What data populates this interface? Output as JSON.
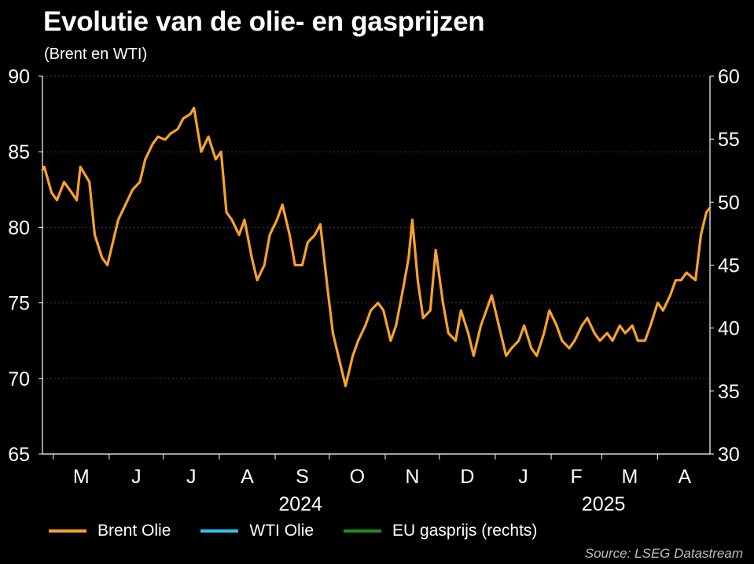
{
  "chart_data": {
    "type": "line",
    "title": "Evolutie van de olie- en gasprijzen",
    "subtitle": "(Brent en WTI)",
    "source": "Source: LSEG Datastream",
    "x_month_labels": [
      "M",
      "J",
      "J",
      "A",
      "S",
      "O",
      "N",
      "D",
      "J",
      "F",
      "M",
      "A"
    ],
    "x_year_labels": [
      "2024",
      "2025"
    ],
    "xlim": [
      "2024-04-25",
      "2025-04-30"
    ],
    "y_left": {
      "ylim": [
        65,
        90
      ],
      "ticks": [
        65,
        70,
        75,
        80,
        85,
        90
      ]
    },
    "y_right": {
      "ylim": [
        30,
        60
      ],
      "ticks": [
        30,
        35,
        40,
        45,
        50,
        55,
        60
      ]
    },
    "grid": "horizontal",
    "legend_position": "bottom",
    "series": [
      {
        "name": "Brent Olie",
        "axis": "left",
        "color": "#f7a22b",
        "points": [
          [
            "2024-04-25",
            83.8
          ],
          [
            "2024-04-26",
            84.0
          ],
          [
            "2024-04-30",
            82.3
          ],
          [
            "2024-05-03",
            81.8
          ],
          [
            "2024-05-07",
            83.0
          ],
          [
            "2024-05-10",
            82.5
          ],
          [
            "2024-05-14",
            81.8
          ],
          [
            "2024-05-16",
            84.0
          ],
          [
            "2024-05-21",
            83.0
          ],
          [
            "2024-05-24",
            79.5
          ],
          [
            "2024-05-28",
            78.0
          ],
          [
            "2024-05-31",
            77.5
          ],
          [
            "2024-06-03",
            79.0
          ],
          [
            "2024-06-06",
            80.5
          ],
          [
            "2024-06-10",
            81.5
          ],
          [
            "2024-06-14",
            82.5
          ],
          [
            "2024-06-18",
            83.0
          ],
          [
            "2024-06-21",
            84.5
          ],
          [
            "2024-06-25",
            85.5
          ],
          [
            "2024-06-28",
            86.0
          ],
          [
            "2024-07-02",
            85.8
          ],
          [
            "2024-07-05",
            86.2
          ],
          [
            "2024-07-09",
            86.5
          ],
          [
            "2024-07-12",
            87.2
          ],
          [
            "2024-07-16",
            87.5
          ],
          [
            "2024-07-18",
            87.9
          ],
          [
            "2024-07-22",
            85.0
          ],
          [
            "2024-07-26",
            86.0
          ],
          [
            "2024-07-30",
            84.5
          ],
          [
            "2024-08-02",
            85.0
          ],
          [
            "2024-08-05",
            81.0
          ],
          [
            "2024-08-08",
            80.5
          ],
          [
            "2024-08-12",
            79.5
          ],
          [
            "2024-08-15",
            80.5
          ],
          [
            "2024-08-19",
            78.0
          ],
          [
            "2024-08-22",
            76.5
          ],
          [
            "2024-08-26",
            77.5
          ],
          [
            "2024-08-29",
            79.5
          ],
          [
            "2024-09-02",
            80.5
          ],
          [
            "2024-09-05",
            81.5
          ],
          [
            "2024-09-09",
            79.5
          ],
          [
            "2024-09-12",
            77.5
          ],
          [
            "2024-09-16",
            77.5
          ],
          [
            "2024-09-19",
            79.0
          ],
          [
            "2024-09-23",
            79.5
          ],
          [
            "2024-09-26",
            80.2
          ],
          [
            "2024-09-30",
            76.0
          ],
          [
            "2024-10-03",
            73.0
          ],
          [
            "2024-10-07",
            71.0
          ],
          [
            "2024-10-10",
            69.5
          ],
          [
            "2024-10-14",
            71.5
          ],
          [
            "2024-10-17",
            72.5
          ],
          [
            "2024-10-21",
            73.5
          ],
          [
            "2024-10-24",
            74.5
          ],
          [
            "2024-10-28",
            75.0
          ],
          [
            "2024-10-31",
            74.5
          ],
          [
            "2024-11-04",
            72.5
          ],
          [
            "2024-11-07",
            73.5
          ],
          [
            "2024-11-11",
            76.0
          ],
          [
            "2024-11-14",
            78.0
          ],
          [
            "2024-11-16",
            80.5
          ],
          [
            "2024-11-19",
            76.5
          ],
          [
            "2024-11-22",
            74.0
          ],
          [
            "2024-11-26",
            74.5
          ],
          [
            "2024-11-29",
            78.5
          ],
          [
            "2024-12-03",
            75.0
          ],
          [
            "2024-12-06",
            73.0
          ],
          [
            "2024-12-10",
            72.5
          ],
          [
            "2024-12-13",
            74.5
          ],
          [
            "2024-12-17",
            73.0
          ],
          [
            "2024-12-20",
            71.5
          ],
          [
            "2024-12-24",
            73.5
          ],
          [
            "2024-12-30",
            75.5
          ],
          [
            "2025-01-03",
            73.5
          ],
          [
            "2025-01-07",
            71.5
          ],
          [
            "2025-01-10",
            72.0
          ],
          [
            "2025-01-14",
            72.5
          ],
          [
            "2025-01-17",
            73.5
          ],
          [
            "2025-01-21",
            72.0
          ],
          [
            "2025-01-24",
            71.5
          ],
          [
            "2025-01-28",
            73.0
          ],
          [
            "2025-01-31",
            74.5
          ],
          [
            "2025-02-04",
            73.5
          ],
          [
            "2025-02-07",
            72.5
          ],
          [
            "2025-02-11",
            72.0
          ],
          [
            "2025-02-14",
            72.5
          ],
          [
            "2025-02-18",
            73.5
          ],
          [
            "2025-02-21",
            74.0
          ],
          [
            "2025-02-25",
            73.0
          ],
          [
            "2025-02-28",
            72.5
          ],
          [
            "2025-03-04",
            73.0
          ],
          [
            "2025-03-07",
            72.5
          ],
          [
            "2025-03-11",
            73.5
          ],
          [
            "2025-03-14",
            73.0
          ],
          [
            "2025-03-18",
            73.5
          ],
          [
            "2025-03-21",
            72.5
          ],
          [
            "2025-03-25",
            72.5
          ],
          [
            "2025-03-28",
            73.5
          ],
          [
            "2025-04-01",
            75.0
          ],
          [
            "2025-04-04",
            74.5
          ],
          [
            "2025-04-08",
            75.5
          ],
          [
            "2025-04-11",
            76.5
          ],
          [
            "2025-04-14",
            76.5
          ],
          [
            "2025-04-17",
            77.0
          ],
          [
            "2025-04-22",
            76.5
          ],
          [
            "2025-04-25",
            79.5
          ],
          [
            "2025-04-28",
            81.0
          ],
          [
            "2025-04-30",
            81.3
          ]
        ]
      }
    ]
  },
  "legend": {
    "brent": "Brent Olie",
    "wti": "WTI Olie",
    "gas": "EU gasprijs (rechts)"
  }
}
